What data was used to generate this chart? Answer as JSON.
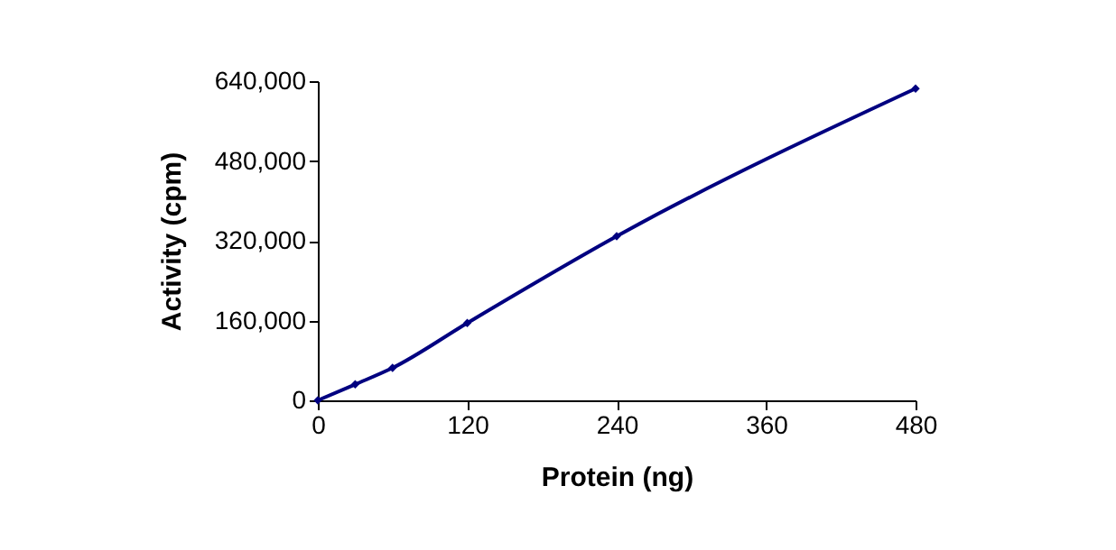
{
  "chart_data": {
    "type": "line",
    "xlabel": "Protein (ng)",
    "ylabel": "Activity (cpm)",
    "x": [
      0,
      30,
      60,
      120,
      240,
      480
    ],
    "series": [
      {
        "color": "#000080",
        "values": [
          0,
          32000,
          65000,
          155000,
          329000,
          625000
        ]
      }
    ],
    "xlim": [
      0,
      480
    ],
    "xticks": [
      0,
      120,
      240,
      360,
      480
    ],
    "ylim": [
      0,
      640000
    ],
    "yticks": [
      0,
      {
        "value": 160000,
        "label": "160,000"
      },
      {
        "value": 320000,
        "label": "320,000"
      },
      {
        "value": 480000,
        "label": "480,000"
      },
      {
        "value": 640000,
        "label": "640,000"
      }
    ],
    "marker": "diamond",
    "line_style": "solid",
    "grid": false
  }
}
